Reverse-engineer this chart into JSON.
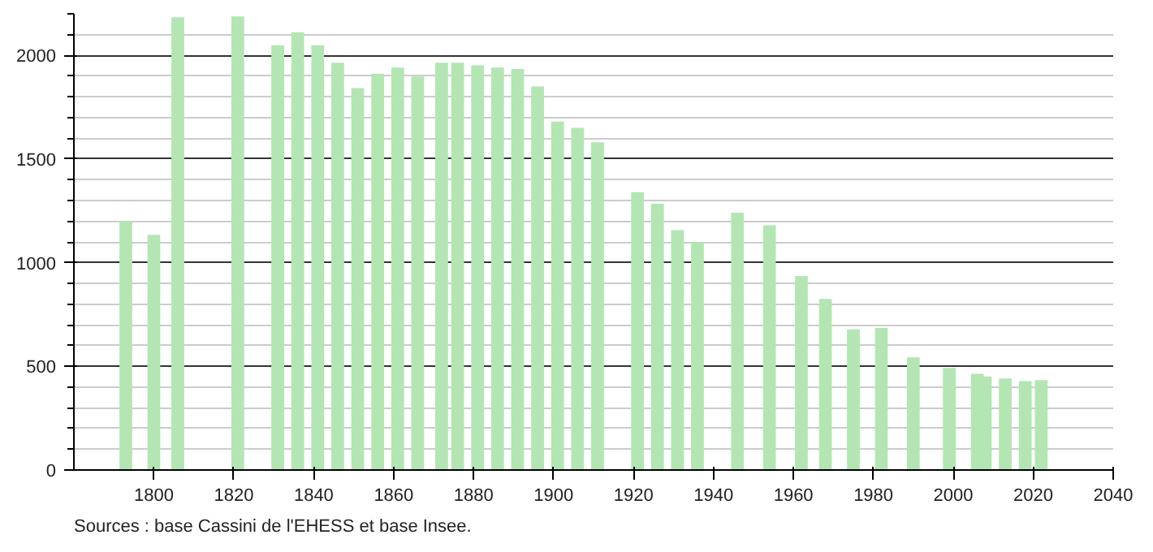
{
  "chart_data": {
    "type": "bar",
    "color": "#b3e6b3",
    "x": [
      1793,
      1800,
      1806,
      1821,
      1831,
      1836,
      1841,
      1846,
      1851,
      1856,
      1861,
      1866,
      1872,
      1876,
      1881,
      1886,
      1891,
      1896,
      1901,
      1906,
      1911,
      1921,
      1926,
      1931,
      1936,
      1946,
      1954,
      1962,
      1968,
      1975,
      1982,
      1990,
      1999,
      2006,
      2008,
      2013,
      2018,
      2022
    ],
    "values": [
      1200,
      1134,
      2183,
      2187,
      2048,
      2111,
      2048,
      1964,
      1842,
      1911,
      1941,
      1898,
      1964,
      1964,
      1951,
      1941,
      1934,
      1850,
      1680,
      1650,
      1581,
      1340,
      1284,
      1157,
      1099,
      1241,
      1180,
      936,
      825,
      678,
      685,
      543,
      492,
      464,
      451,
      441,
      429,
      434
    ],
    "xlim": [
      1780,
      2040
    ],
    "xticks": [
      1800,
      1820,
      1840,
      1860,
      1880,
      1900,
      1920,
      1940,
      1960,
      1980,
      2000,
      2020,
      2040
    ],
    "ylim": [
      0,
      2200
    ],
    "yticks": [
      0,
      500,
      1000,
      1500,
      2000
    ],
    "grid": "y",
    "annotations": [
      "Sources : base Cassini de l'EHESS et base Insee."
    ]
  }
}
